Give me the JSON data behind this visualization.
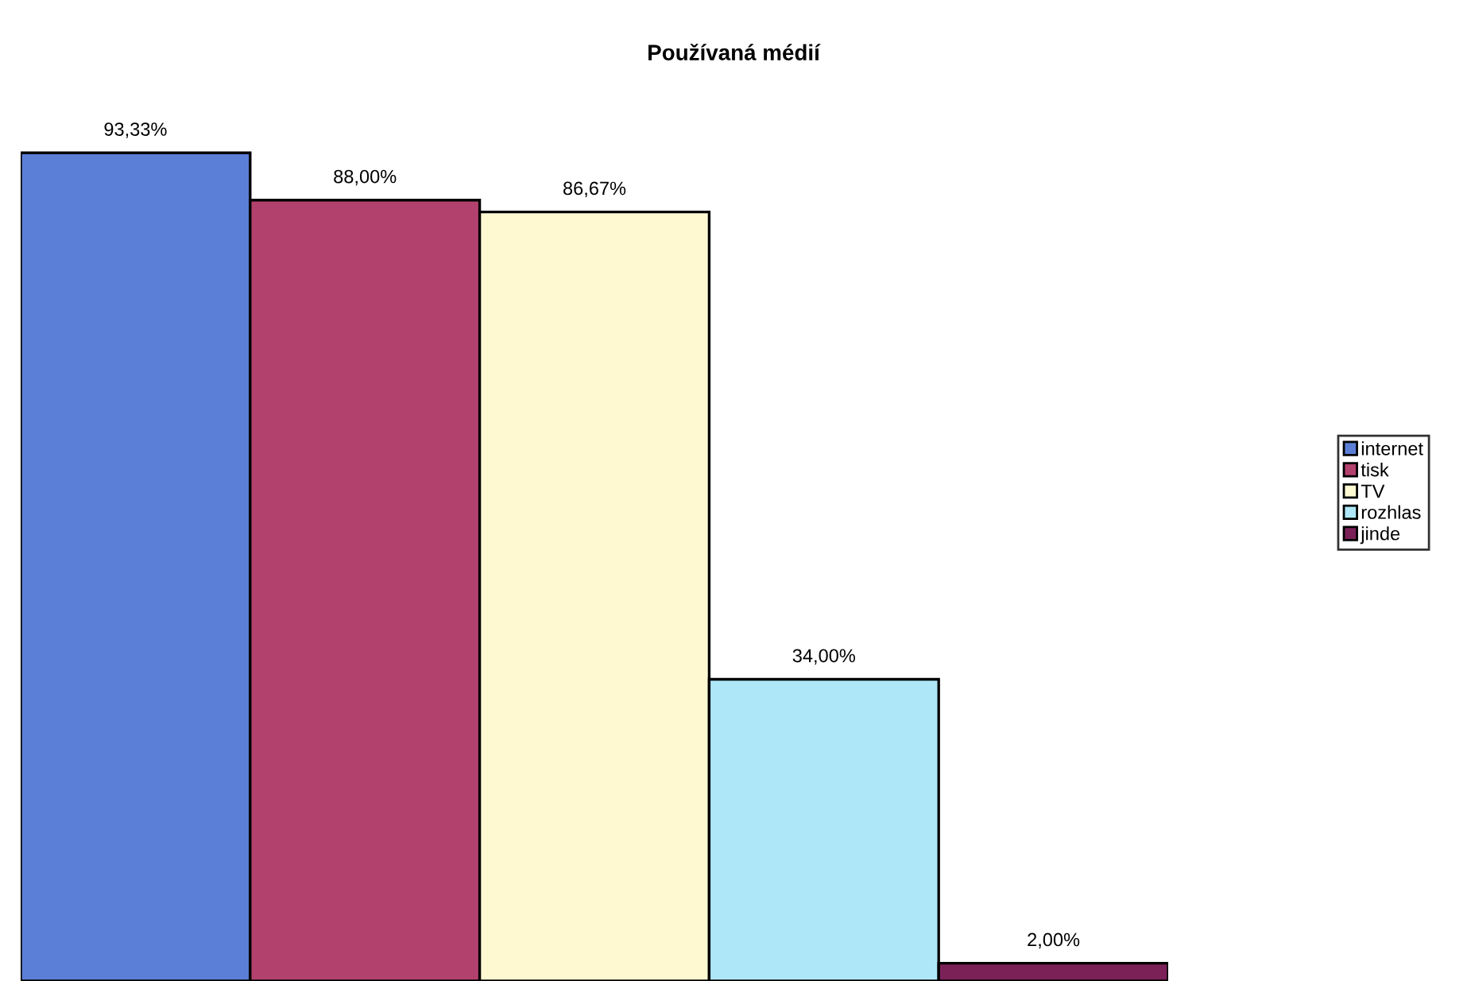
{
  "chart_data": {
    "type": "bar",
    "title": "Používaná médií",
    "categories": [
      null
    ],
    "series": [
      {
        "name": "internet",
        "color": "#5b7fd6",
        "values": [
          93.33
        ],
        "value_labels": [
          "93,33%"
        ]
      },
      {
        "name": "tisk",
        "color": "#b3416e",
        "values": [
          88.0
        ],
        "value_labels": [
          "88,00%"
        ]
      },
      {
        "name": "TV",
        "color": "#fff9d2",
        "values": [
          86.67
        ],
        "value_labels": [
          "86,67%"
        ]
      },
      {
        "name": "rozhlas",
        "color": "#aee8f8",
        "values": [
          34.0
        ],
        "value_labels": [
          "34,00%"
        ]
      },
      {
        "name": "jinde",
        "color": "#7b2158",
        "values": [
          2.0
        ],
        "value_labels": [
          "2,00%"
        ]
      }
    ],
    "legend": "right",
    "grid": false
  }
}
